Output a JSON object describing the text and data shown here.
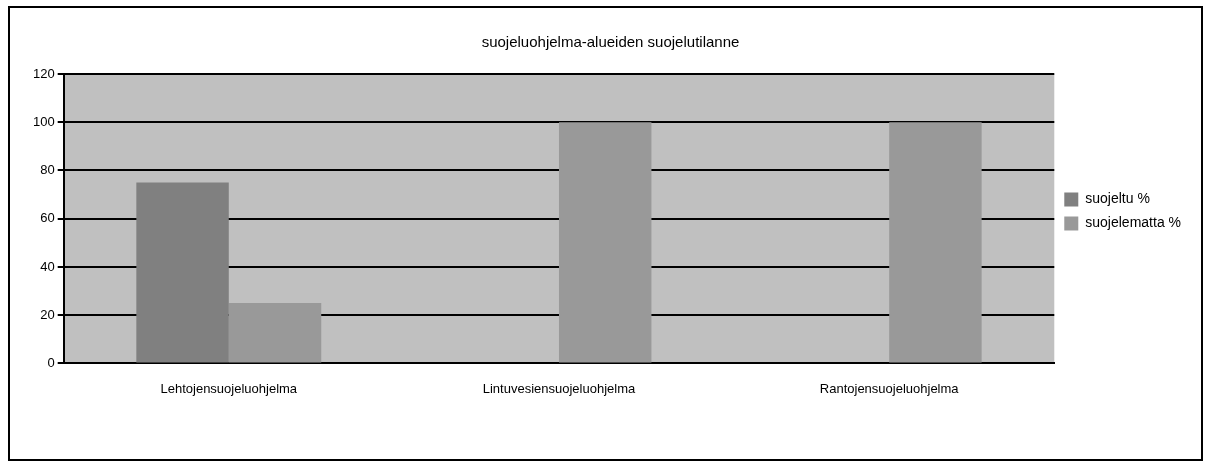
{
  "chart_data": {
    "type": "bar",
    "title": "suojeluohjelma-alueiden suojelutilanne",
    "categories": [
      "Lehtojensuojeluohjelma",
      "Lintuvesiensuojeluohjelma",
      "Rantojensuojeluohjelma"
    ],
    "series": [
      {
        "name": "suojeltu %",
        "color": "#808080",
        "values": [
          75,
          0,
          0
        ]
      },
      {
        "name": "suojelematta %",
        "color": "#999999",
        "values": [
          25,
          100,
          100
        ]
      }
    ],
    "ylim": [
      0,
      120
    ],
    "yticks": [
      0,
      20,
      40,
      60,
      80,
      100,
      120
    ],
    "grid": "y",
    "legend": "right"
  }
}
